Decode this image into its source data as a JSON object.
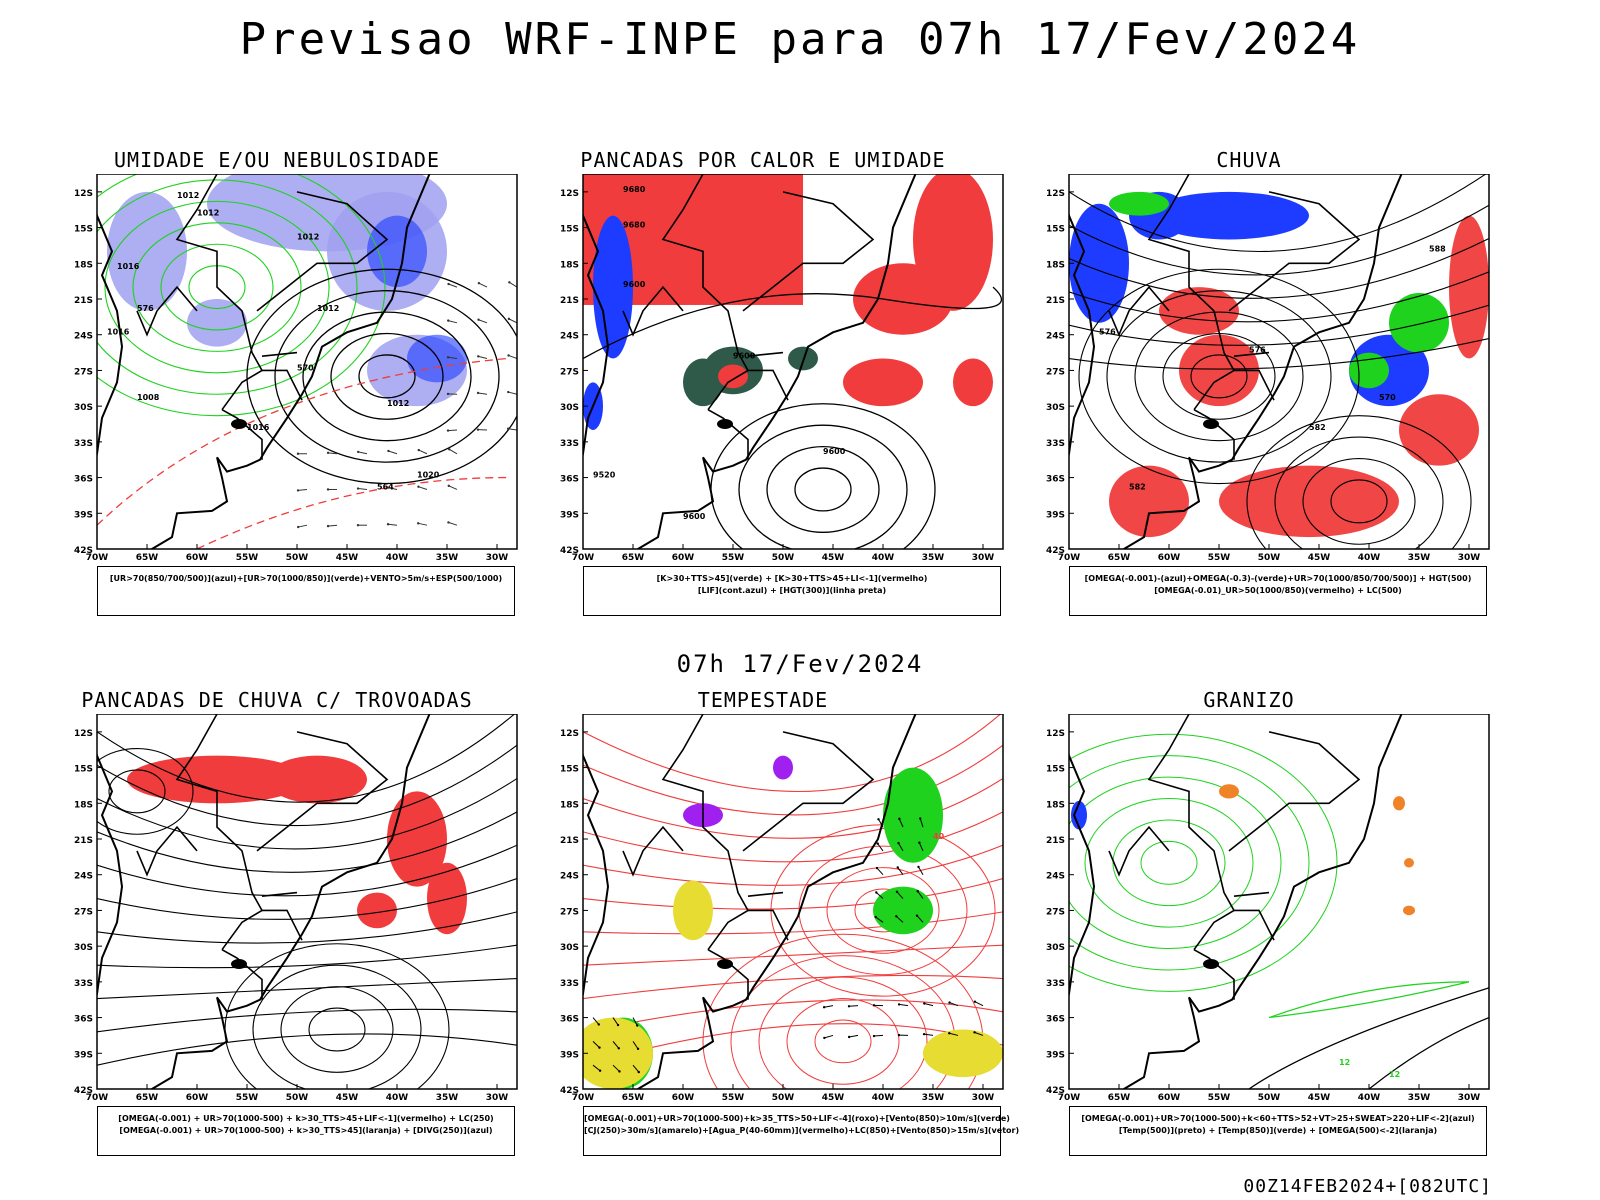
{
  "title": "Previsao WRF-INPE  para 07h 17/Fev/2024",
  "mid_title": "07h 17/Fev/2024",
  "footer": "00Z14FEB2024+[082UTC]",
  "axes": {
    "lat_ticks": [
      "12S",
      "15S",
      "18S",
      "21S",
      "24S",
      "27S",
      "30S",
      "33S",
      "36S",
      "39S",
      "42S"
    ],
    "lon_ticks": [
      "70W",
      "65W",
      "60W",
      "55W",
      "50W",
      "45W",
      "40W",
      "35W",
      "30W"
    ]
  },
  "colors": {
    "red": "#f03c3c",
    "green": "#1ed21e",
    "blue": "#1e3cff",
    "lavender": "#a0a0f0",
    "yellow": "#e6dc32",
    "orange": "#f08228",
    "purple": "#a020f0",
    "darkgreen": "#2f5a4a"
  },
  "panels": [
    {
      "title": "UMIDADE E/OU NEBULOSIDADE",
      "legend": [
        "[UR>70(850/700/500)](azul)+[UR>70(1000/850)](verde)+VENTO>5m/s+ESP(500/1000)"
      ],
      "contour_labels": [
        "1012",
        "1012",
        "1012",
        "1016",
        "1012",
        "1016",
        "1008",
        "1012",
        "1016",
        "1020",
        "576",
        "570",
        "564"
      ]
    },
    {
      "title": "PANCADAS POR CALOR E UMIDADE",
      "legend": [
        "[K>30+TTS>45](verde)  +  [K>30+TTS>45+LI<-1](vermelho)",
        "[LIF](cont.azul)  +  [HGT(300)](linha preta)"
      ],
      "contour_labels": [
        "9680",
        "9680",
        "9600",
        "9600",
        "9520",
        "9600",
        "9600"
      ]
    },
    {
      "title": "CHUVA",
      "legend": [
        "[OMEGA(-0.001)-(azul)+OMEGA(-0.3)-(verde)+UR>70(1000/850/700/500)]  +  HGT(500)",
        "[OMEGA(-0.01)_UR>50(1000/850)(vermelho)  +  LC(500)"
      ],
      "contour_labels": [
        "588",
        "576",
        "582",
        "570",
        "576",
        "582"
      ]
    },
    {
      "title": "PANCADAS DE CHUVA C/ TROVOADAS",
      "legend": [
        "[OMEGA(-0.001)  +  UR>70(1000-500)  +  k>30_TTS>45+LIF<-1](vermelho)  +  LC(250)",
        "[OMEGA(-0.001)  +  UR>70(1000-500)  +  k>30_TTS>45](laranja)  +  [DIVG(250)](azul)"
      ],
      "contour_labels": []
    },
    {
      "title": "TEMPESTADE",
      "legend": [
        "[OMEGA(-0.001)+UR>70(1000-500)+k>35_TTS>50+LIF<-4](roxo)+[Vento(850)>10m/s](verde)",
        "[CJ(250)>30m/s](amarelo)+[Agua_P(40-60mm)](vermelho)+LC(850)+[Vento(850)>15m/s](vetor)"
      ],
      "contour_labels": [
        "40"
      ]
    },
    {
      "title": "GRANIZO",
      "legend": [
        "[OMEGA(-0.001)+UR>70(1000-500)+k<60+TTS>52+VT>25+SWEAT>220+LIF<-2](azul)",
        "[Temp(500)](preto)  +  [Temp(850)](verde)  +  [OMEGA(500)<-2](laranja)"
      ],
      "contour_labels": [
        "12",
        "12"
      ]
    }
  ]
}
